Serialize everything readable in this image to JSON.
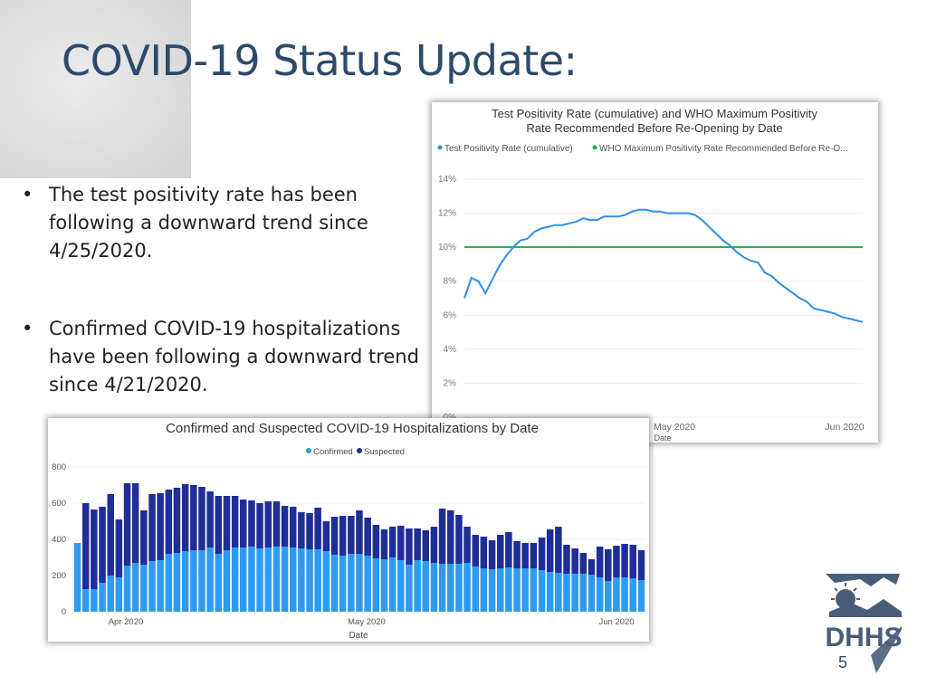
{
  "slide": {
    "title": "COVID-19 Status Update:",
    "bullets": [
      "The test positivity rate has been following a downward trend since 4/25/2020.",
      "Confirmed COVID-19 hospitalizations have been following a downward trend since 4/21/2020."
    ],
    "page_number": "5",
    "logo_text": "DHHS"
  },
  "chart_data": [
    {
      "type": "line",
      "title": "Test Positivity Rate (cumulative) and WHO Maximum Positivity Rate Recommended Before Re-Opening by Date",
      "xlabel": "Date",
      "ylabel": "",
      "x_ticks": [
        "May 2020",
        "Jun 2020"
      ],
      "y_ticks": [
        "0%",
        "2%",
        "4%",
        "6%",
        "8%",
        "10%",
        "12%",
        "14%"
      ],
      "ylim": [
        0,
        14
      ],
      "legend_position": "top-left",
      "colors": {
        "positivity": "#2f8fe8",
        "who": "#19b34a"
      },
      "series": [
        {
          "name": "Test Positivity Rate (cumulative)",
          "values": [
            7.0,
            8.2,
            8.0,
            7.3,
            8.1,
            8.9,
            9.5,
            10.0,
            10.4,
            10.5,
            10.9,
            11.1,
            11.2,
            11.3,
            11.3,
            11.4,
            11.5,
            11.7,
            11.6,
            11.6,
            11.8,
            11.8,
            11.8,
            11.9,
            12.1,
            12.2,
            12.2,
            12.1,
            12.1,
            12.0,
            12.0,
            12.0,
            12.0,
            11.9,
            11.6,
            11.2,
            10.8,
            10.4,
            10.1,
            9.7,
            9.4,
            9.2,
            9.1,
            8.5,
            8.3,
            7.9,
            7.6,
            7.3,
            7.0,
            6.8,
            6.4,
            6.3,
            6.2,
            6.1,
            5.9,
            5.8,
            5.7,
            5.6
          ]
        },
        {
          "name": "WHO Maximum Positivity Rate Recommended Before Re-O...",
          "values": [
            10,
            10
          ]
        }
      ]
    },
    {
      "type": "bar",
      "stacked": true,
      "title": "Confirmed and Suspected COVID-19 Hospitalizations by Date",
      "xlabel": "Date",
      "ylabel": "",
      "x_ticks": [
        "Apr 2020",
        "May 2020",
        "Jun 2020"
      ],
      "y_ticks": [
        "0",
        "200",
        "400",
        "600",
        "800"
      ],
      "ylim": [
        0,
        800
      ],
      "legend_position": "top-center",
      "colors": {
        "confirmed": "#2f9bf0",
        "suspected": "#1f2e95"
      },
      "series": [
        {
          "name": "Confirmed",
          "values": [
            380,
            125,
            125,
            160,
            200,
            190,
            255,
            270,
            260,
            280,
            285,
            320,
            325,
            335,
            340,
            340,
            355,
            320,
            340,
            355,
            355,
            360,
            350,
            355,
            360,
            360,
            355,
            350,
            345,
            345,
            335,
            315,
            310,
            320,
            320,
            310,
            295,
            290,
            300,
            285,
            260,
            285,
            280,
            270,
            265,
            265,
            265,
            270,
            250,
            240,
            235,
            240,
            245,
            240,
            240,
            240,
            230,
            220,
            215,
            210,
            210,
            210,
            205,
            190,
            170,
            190,
            190,
            185,
            175
          ]
        },
        {
          "name": "Suspected",
          "values": [
            0,
            475,
            440,
            420,
            450,
            320,
            455,
            440,
            300,
            370,
            370,
            355,
            360,
            370,
            360,
            350,
            310,
            320,
            300,
            285,
            265,
            255,
            250,
            255,
            250,
            225,
            225,
            200,
            200,
            230,
            165,
            210,
            220,
            210,
            240,
            210,
            185,
            165,
            170,
            190,
            200,
            175,
            170,
            200,
            305,
            295,
            270,
            200,
            175,
            175,
            160,
            185,
            195,
            150,
            140,
            140,
            180,
            235,
            255,
            160,
            140,
            115,
            85,
            170,
            175,
            175,
            185,
            185,
            165
          ]
        }
      ]
    }
  ]
}
